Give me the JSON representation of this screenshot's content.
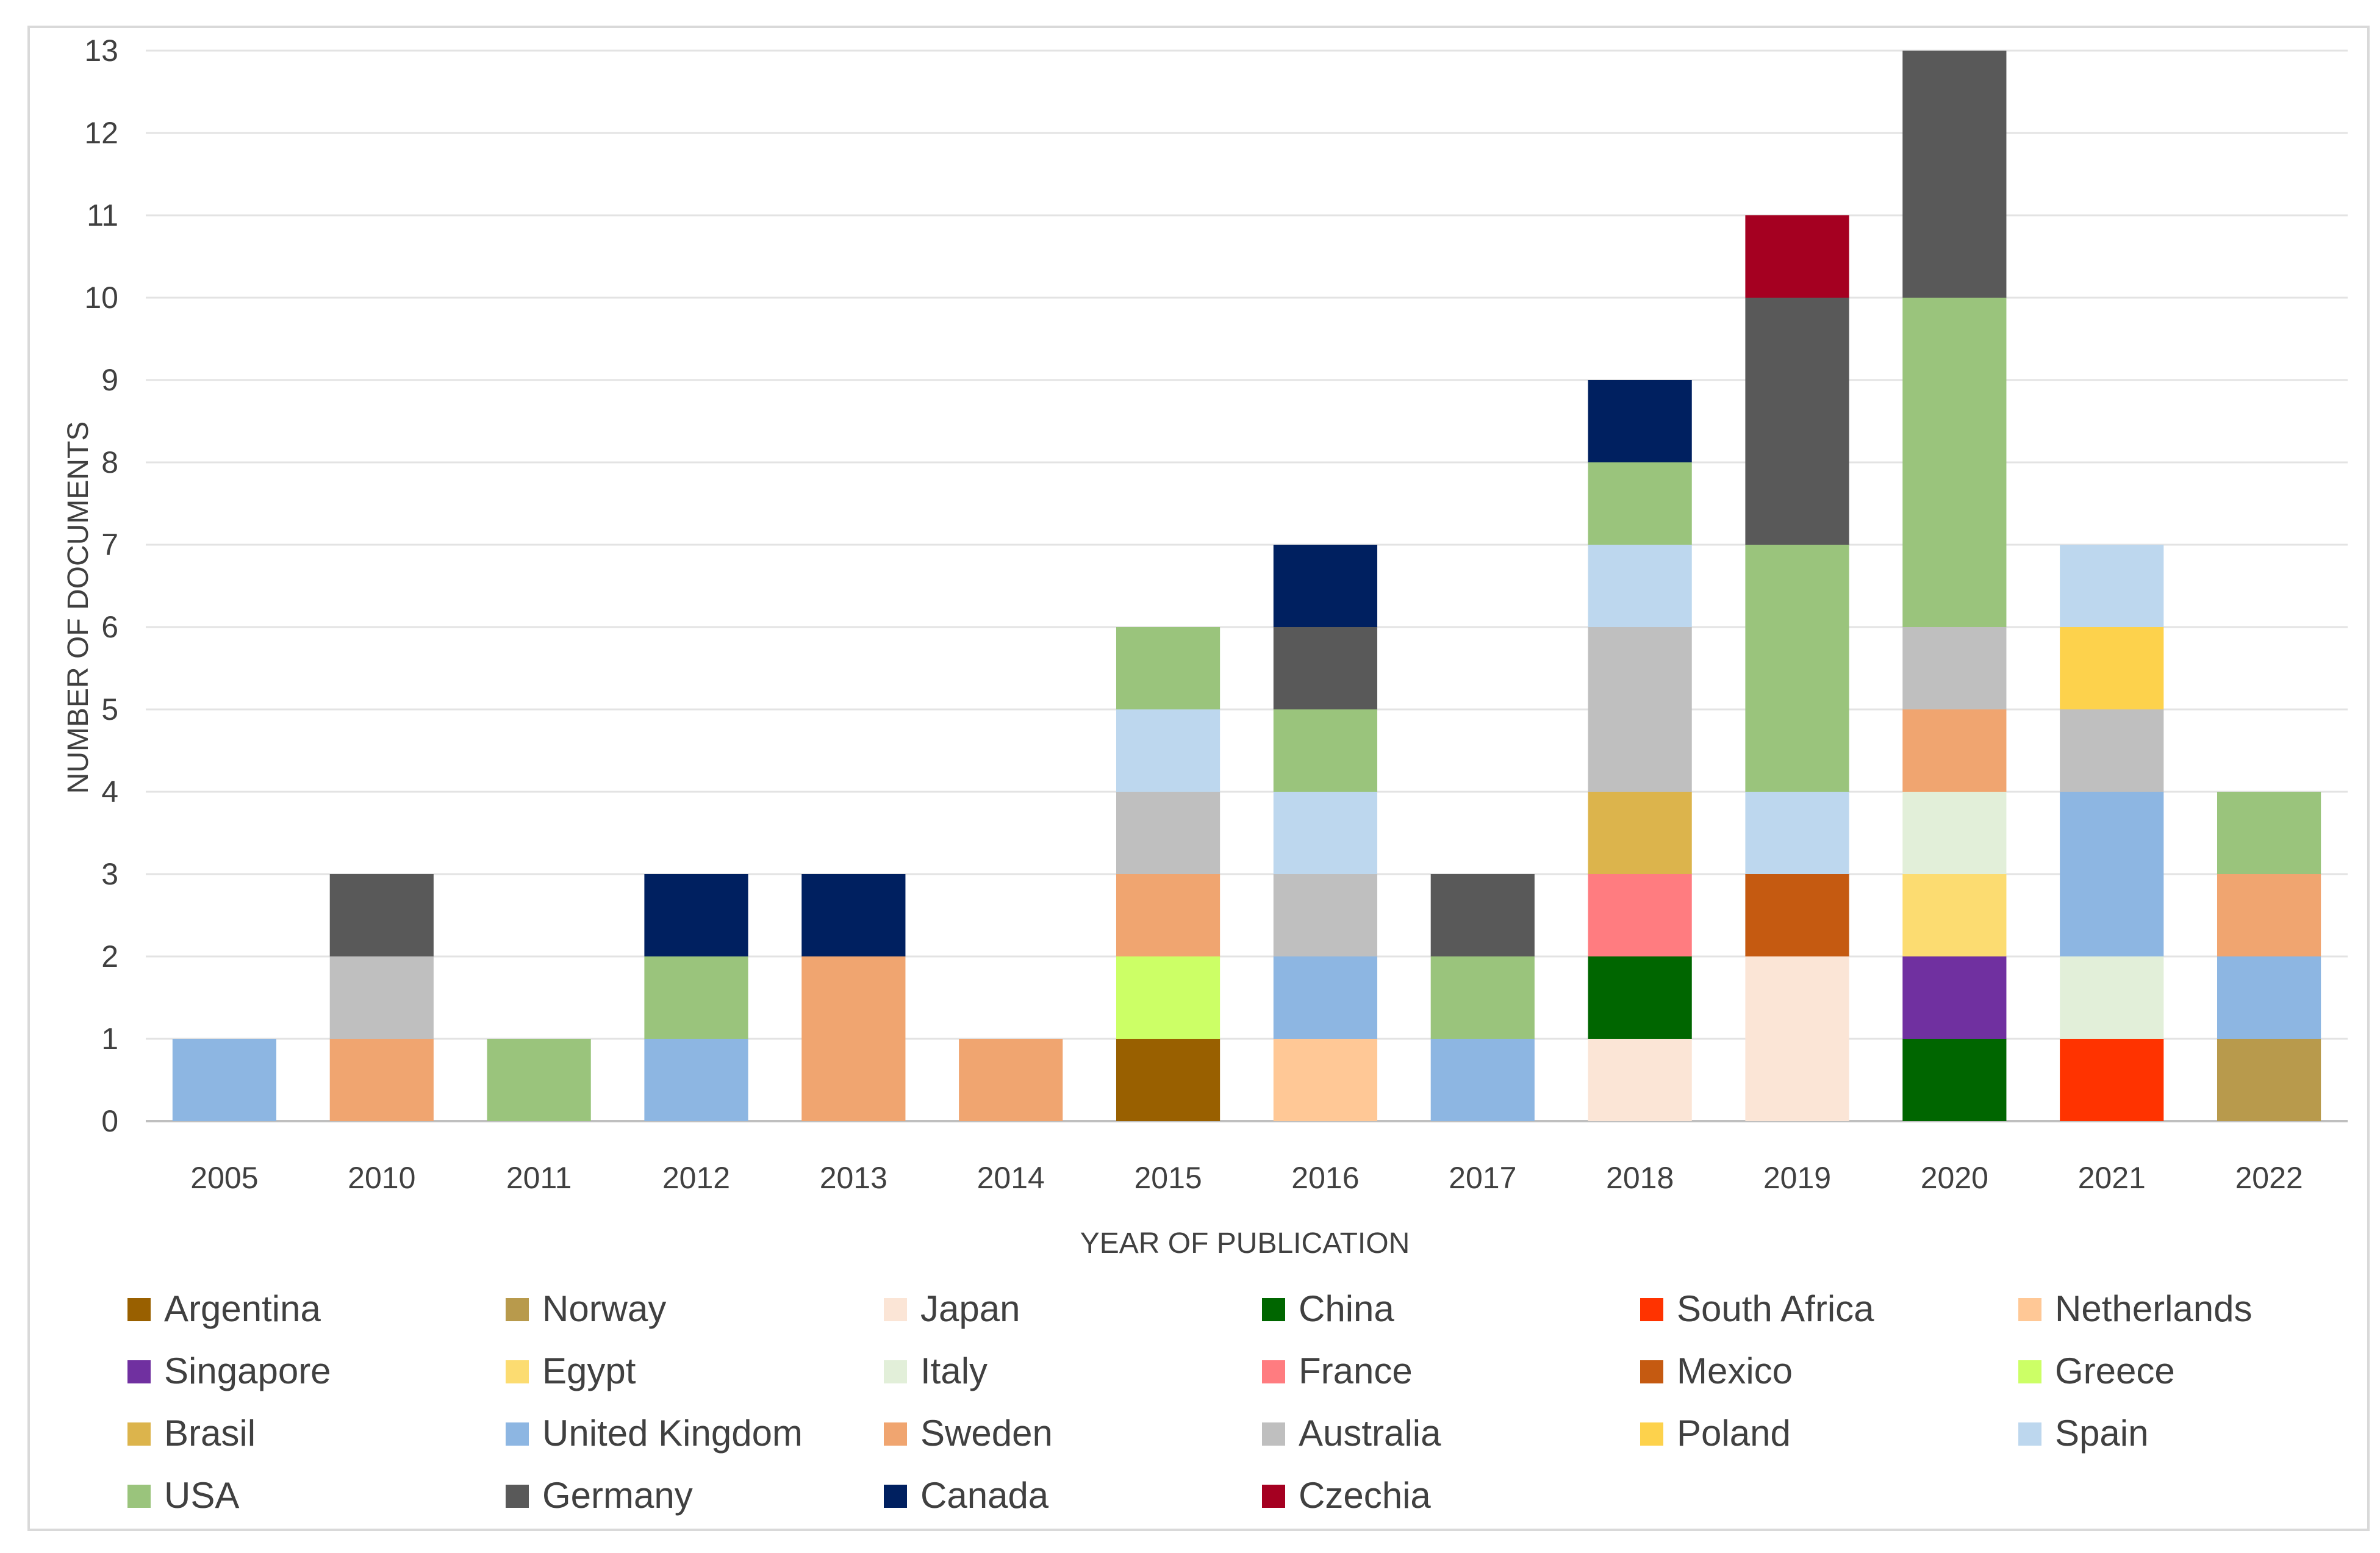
{
  "chart_data": {
    "type": "bar",
    "stacked": true,
    "title": "",
    "xlabel": "YEAR OF PUBLICATION",
    "ylabel": "NUMBER OF DOCUMENTS",
    "ylim": [
      0,
      13
    ],
    "yticks": [
      0,
      1,
      2,
      3,
      4,
      5,
      6,
      7,
      8,
      9,
      10,
      11,
      12,
      13
    ],
    "grid": true,
    "legend_position": "bottom",
    "categories": [
      "2005",
      "2010",
      "2011",
      "2012",
      "2013",
      "2014",
      "2015",
      "2016",
      "2017",
      "2018",
      "2019",
      "2020",
      "2021",
      "2022"
    ],
    "series": [
      {
        "name": "Argentina",
        "color": "#996000",
        "values": [
          0,
          0,
          0,
          0,
          0,
          0,
          1,
          0,
          0,
          0,
          0,
          0,
          0,
          0
        ]
      },
      {
        "name": "Norway",
        "color": "#b89a4c",
        "values": [
          0,
          0,
          0,
          0,
          0,
          0,
          0,
          0,
          0,
          0,
          0,
          0,
          0,
          1
        ]
      },
      {
        "name": "Japan",
        "color": "#fbe5d6",
        "values": [
          0,
          0,
          0,
          0,
          0,
          0,
          0,
          0,
          0,
          1,
          2,
          0,
          0,
          0
        ]
      },
      {
        "name": "China",
        "color": "#006600",
        "values": [
          0,
          0,
          0,
          0,
          0,
          0,
          0,
          0,
          0,
          1,
          0,
          1,
          0,
          0
        ]
      },
      {
        "name": "South Africa",
        "color": "#ff3300",
        "values": [
          0,
          0,
          0,
          0,
          0,
          0,
          0,
          0,
          0,
          0,
          0,
          0,
          1,
          0
        ]
      },
      {
        "name": "Netherlands",
        "color": "#ffc896",
        "values": [
          0,
          0,
          0,
          0,
          0,
          0,
          0,
          1,
          0,
          0,
          0,
          0,
          0,
          0
        ]
      },
      {
        "name": "Singapore",
        "color": "#7030a0",
        "values": [
          0,
          0,
          0,
          0,
          0,
          0,
          0,
          0,
          0,
          0,
          0,
          1,
          0,
          0
        ]
      },
      {
        "name": "Egypt",
        "color": "#fcdc71",
        "values": [
          0,
          0,
          0,
          0,
          0,
          0,
          0,
          0,
          0,
          0,
          0,
          1,
          0,
          0
        ]
      },
      {
        "name": "Italy",
        "color": "#e2efd9",
        "values": [
          0,
          0,
          0,
          0,
          0,
          0,
          0,
          0,
          0,
          0,
          0,
          1,
          1,
          0
        ]
      },
      {
        "name": "France",
        "color": "#ff7c80",
        "values": [
          0,
          0,
          0,
          0,
          0,
          0,
          0,
          0,
          0,
          1,
          0,
          0,
          0,
          0
        ]
      },
      {
        "name": "Mexico",
        "color": "#c55a11",
        "values": [
          0,
          0,
          0,
          0,
          0,
          0,
          0,
          0,
          0,
          0,
          1,
          0,
          0,
          0
        ]
      },
      {
        "name": "Greece",
        "color": "#ccff66",
        "values": [
          0,
          0,
          0,
          0,
          0,
          0,
          1,
          0,
          0,
          0,
          0,
          0,
          0,
          0
        ]
      },
      {
        "name": "Brasil",
        "color": "#dcb44c",
        "values": [
          0,
          0,
          0,
          0,
          0,
          0,
          0,
          0,
          0,
          1,
          0,
          0,
          0,
          0
        ]
      },
      {
        "name": "United Kingdom",
        "color": "#8db6e2",
        "values": [
          1,
          0,
          0,
          1,
          0,
          0,
          0,
          1,
          1,
          0,
          0,
          0,
          2,
          1
        ]
      },
      {
        "name": "Sweden",
        "color": "#f0a570",
        "values": [
          0,
          1,
          0,
          0,
          2,
          1,
          1,
          0,
          0,
          0,
          0,
          1,
          0,
          1
        ]
      },
      {
        "name": "Australia",
        "color": "#bfbfbf",
        "values": [
          0,
          1,
          0,
          0,
          0,
          0,
          1,
          1,
          0,
          2,
          0,
          1,
          1,
          0
        ]
      },
      {
        "name": "Poland",
        "color": "#fdd24c",
        "values": [
          0,
          0,
          0,
          0,
          0,
          0,
          0,
          0,
          0,
          0,
          0,
          0,
          1,
          0
        ]
      },
      {
        "name": "Spain",
        "color": "#bdd7ee",
        "values": [
          0,
          0,
          0,
          0,
          0,
          0,
          1,
          1,
          0,
          1,
          1,
          0,
          1,
          0
        ]
      },
      {
        "name": "USA",
        "color": "#9ac47c",
        "values": [
          0,
          0,
          1,
          1,
          0,
          0,
          1,
          1,
          1,
          1,
          3,
          4,
          0,
          1
        ]
      },
      {
        "name": "Germany",
        "color": "#595959",
        "values": [
          0,
          1,
          0,
          0,
          0,
          0,
          0,
          1,
          1,
          0,
          3,
          3,
          0,
          0
        ]
      },
      {
        "name": "Canada",
        "color": "#002060",
        "values": [
          0,
          0,
          0,
          1,
          1,
          0,
          0,
          1,
          0,
          1,
          0,
          0,
          0,
          0
        ]
      },
      {
        "name": "Czechia",
        "color": "#a50021",
        "values": [
          0,
          0,
          0,
          0,
          0,
          0,
          0,
          0,
          0,
          0,
          1,
          0,
          0,
          0
        ]
      }
    ],
    "stack_order": [
      [
        "United Kingdom"
      ],
      [
        "Sweden",
        "Australia",
        "Germany"
      ],
      [
        "USA"
      ],
      [
        "United Kingdom",
        "USA",
        "Canada"
      ],
      [
        "Sweden",
        "Canada"
      ],
      [
        "Sweden"
      ],
      [
        "Argentina",
        "Greece",
        "Sweden",
        "Australia",
        "Spain",
        "USA"
      ],
      [
        "Netherlands",
        "United Kingdom",
        "Australia",
        "Spain",
        "USA",
        "Germany",
        "Canada"
      ],
      [
        "United Kingdom",
        "USA",
        "Germany"
      ],
      [
        "Japan",
        "China",
        "France",
        "Brasil",
        "Australia",
        "Spain",
        "USA",
        "Canada"
      ],
      [
        "Japan",
        "Mexico",
        "Spain",
        "USA",
        "Germany",
        "Czechia"
      ],
      [
        "China",
        "Singapore",
        "Egypt",
        "Italy",
        "Sweden",
        "Australia",
        "USA",
        "Germany"
      ],
      [
        "South Africa",
        "Italy",
        "United Kingdom",
        "Australia",
        "Poland",
        "Spain"
      ],
      [
        "Norway",
        "United Kingdom",
        "Sweden",
        "USA"
      ]
    ]
  }
}
